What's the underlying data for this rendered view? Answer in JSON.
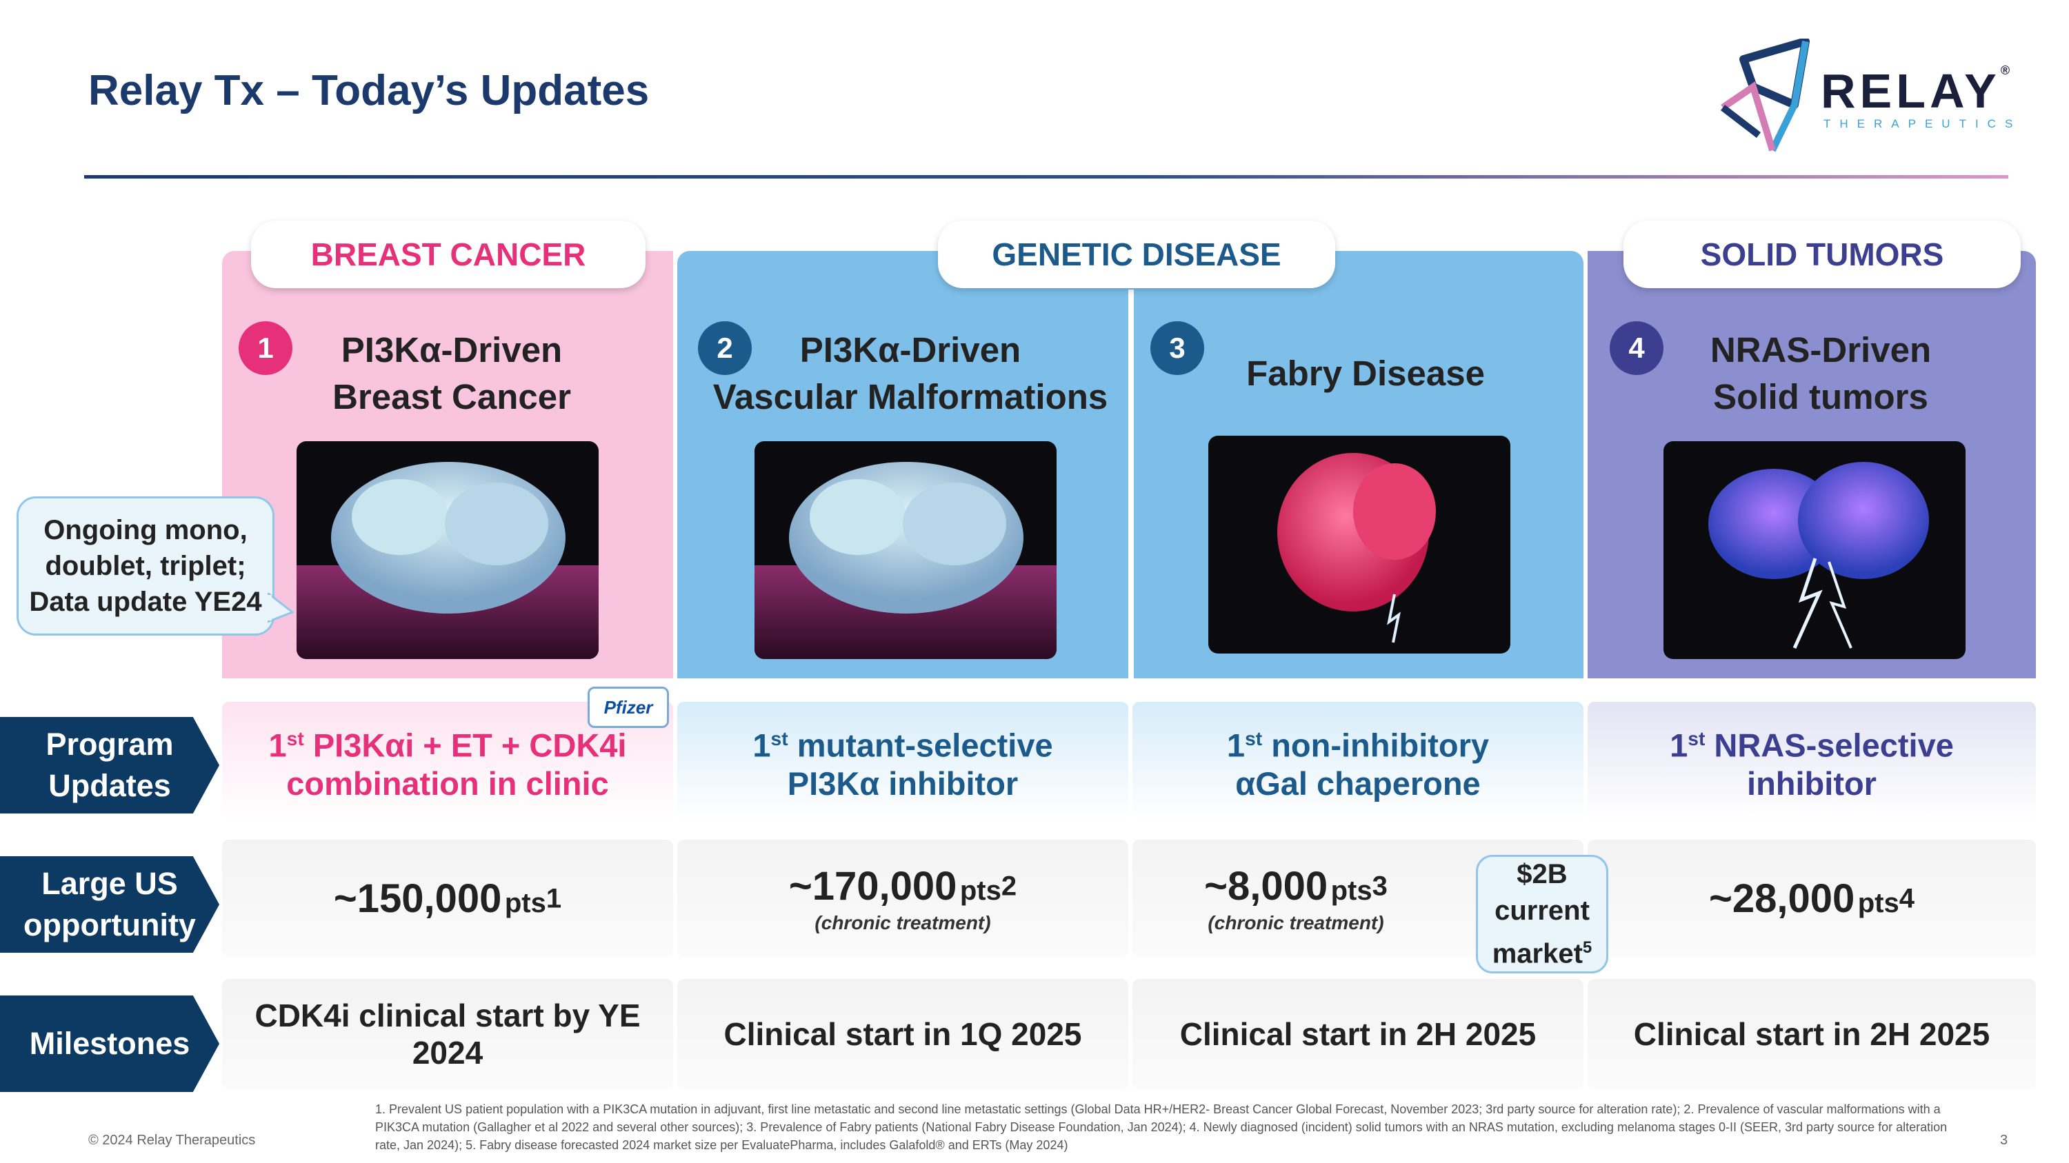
{
  "title": "Relay Tx – Today’s Updates",
  "logo": {
    "word": "RELAY",
    "registered": "®",
    "sub": "THERAPEUTICS"
  },
  "categories": {
    "breast": "BREAST CANCER",
    "genetic": "GENETIC DISEASE",
    "solid": "SOLID TUMORS"
  },
  "colors": {
    "pink": "#e6307a",
    "navy": "#1b3a6b",
    "purple": "#3c3f8f",
    "dark_blue": "#0d3a63"
  },
  "programs": [
    {
      "num": "1",
      "line1": "PI3Kα-Driven",
      "line2": "Breast Cancer",
      "update1": "PI3Kαi + ET + CDK4i",
      "update2": "combination in clinic",
      "opp": "~150,000",
      "opp_sup": "1",
      "opp_sub": "",
      "milestone": "CDK4i clinical start by YE 2024"
    },
    {
      "num": "2",
      "line1": "PI3Kα-Driven",
      "line2": "Vascular Malformations",
      "update1": "mutant-selective",
      "update2": "PI3Kα inhibitor",
      "opp": "~170,000",
      "opp_sup": "2",
      "opp_sub": "(chronic treatment)",
      "milestone": "Clinical start in 1Q 2025"
    },
    {
      "num": "3",
      "line1": "Fabry Disease",
      "line2": "",
      "update1": "non-inhibitory",
      "update2": "αGal chaperone",
      "opp": "~8,000",
      "opp_sup": "3",
      "opp_sub": "(chronic treatment)",
      "milestone": "Clinical start in 2H 2025"
    },
    {
      "num": "4",
      "line1": "NRAS-Driven",
      "line2": "Solid tumors",
      "update1": "NRAS-selective",
      "update2": "inhibitor",
      "opp": "~28,000",
      "opp_sup": "4",
      "opp_sub": "",
      "milestone": "Clinical start in 2H 2025"
    }
  ],
  "first": "1",
  "first_sup": "st",
  "pts": "pts",
  "rows": {
    "updates": [
      "Program",
      "Updates"
    ],
    "opportunity": [
      "Large US",
      "opportunity"
    ],
    "milestones": "Milestones"
  },
  "bubble": [
    "Ongoing mono,",
    "doublet, triplet;",
    "Data update YE24"
  ],
  "market": {
    "l1": "$2B",
    "l2": "current",
    "l3": "market",
    "sup": "5"
  },
  "pfizer": "Pfizer",
  "footer": {
    "copyright": "© 2024 Relay Therapeutics",
    "notes": "1. Prevalent US patient population with a PIK3CA mutation in adjuvant, first line metastatic and second line metastatic settings (Global Data HR+/HER2- Breast Cancer Global Forecast, November 2023; 3rd party source for alteration rate); 2. Prevalence of vascular malformations with a PIK3CA mutation (Gallagher et al 2022 and several other sources); 3. Prevalence of Fabry patients (National Fabry Disease Foundation, Jan 2024); 4. Newly diagnosed (incident) solid tumors with an NRAS mutation, excluding melanoma stages 0-II (SEER, 3rd party source for alteration rate, Jan 2024); 5. Fabry disease forecasted 2024 market size per EvaluatePharma, includes Galafold® and ERTs (May 2024)",
    "page": "3"
  }
}
